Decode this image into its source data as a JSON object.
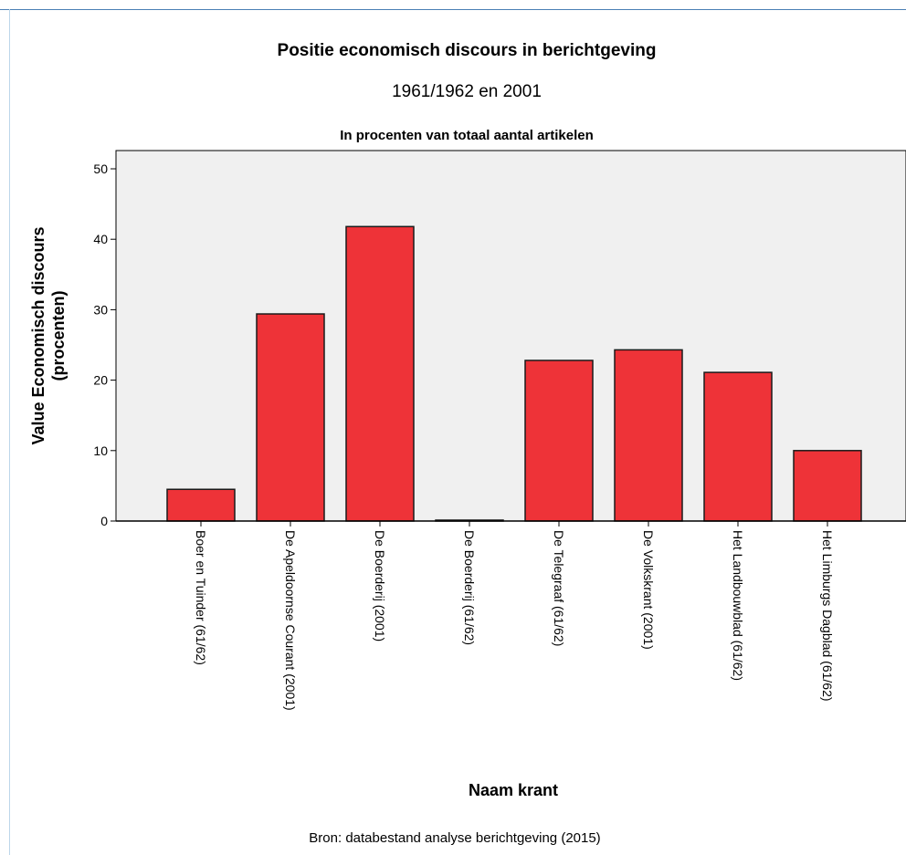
{
  "chart_data": {
    "type": "bar",
    "title": "Positie economisch discours in berichtgeving",
    "subtitle": "1961/1962 en 2001",
    "subtitle2": "In procenten van totaal aantal artikelen",
    "xlabel": "Naam krant",
    "ylabel_line1": "Value Economisch discours",
    "ylabel_line2": "(procenten)",
    "caption": "Bron: databestand analyse berichtgeving (2015)",
    "categories": [
      "Boer en Tuinder (61/62)",
      "De Apeldoornse Courant (2001)",
      "De Boerderij (2001)",
      "De Boerderij (61/62)",
      "De Telegraaf (61/62)",
      "De Volkskrant (2001)",
      "Het Landbouwblad (61/62)",
      "Het Limburgs Dagblad (61/62)"
    ],
    "values": [
      4.5,
      29.4,
      41.8,
      0.1,
      22.8,
      24.3,
      21.1,
      10.0
    ],
    "ylim": [
      0,
      50
    ],
    "yticks": [
      "0",
      "10",
      "20",
      "30",
      "40",
      "50"
    ],
    "grid": false,
    "bar_color": "#ee3338",
    "plot_background": "#f0f0f0"
  }
}
